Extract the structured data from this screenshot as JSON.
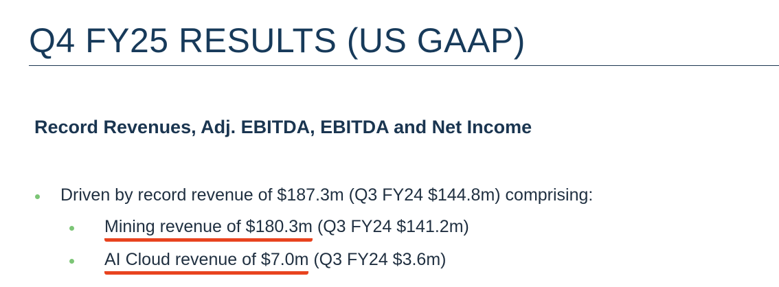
{
  "header": {
    "title": "Q4 FY25 RESULTS (US GAAP)"
  },
  "section": {
    "heading": "Record Revenues, Adj. EBITDA, EBITDA and Net Income",
    "bullets": [
      {
        "text": "Driven by record revenue of $187.3m (Q3 FY24 $144.8m) comprising:",
        "sub_bullets": [
          {
            "highlight": "Mining revenue of $180.3m",
            "text": " (Q3 FY24 $141.2m)"
          },
          {
            "highlight": "AI Cloud revenue of $7.0m",
            "text": " (Q3 FY24 $3.6m)"
          }
        ]
      }
    ]
  }
}
